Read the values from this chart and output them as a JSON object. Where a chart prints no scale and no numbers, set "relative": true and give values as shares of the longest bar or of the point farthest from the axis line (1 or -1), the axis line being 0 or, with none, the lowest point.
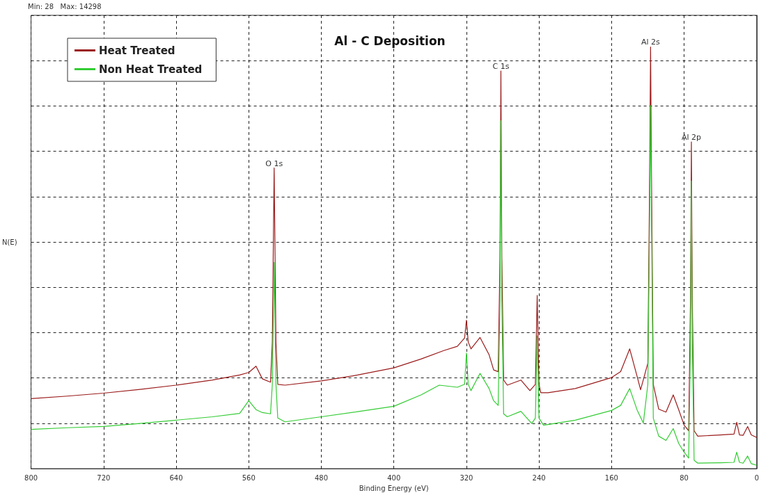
{
  "chart_data": {
    "type": "line",
    "title": "Al - C Deposition",
    "xlabel": "Binding Energy (eV)",
    "ylabel": "N(E)",
    "relative": true,
    "xlim": [
      800,
      0
    ],
    "xticks": [
      800,
      720,
      640,
      560,
      480,
      400,
      320,
      240,
      160,
      80,
      0
    ],
    "grid": true,
    "legend": "top left",
    "marker": "none",
    "line_style": "solid",
    "annotations": [
      "Min: 28   Max: 14298",
      {
        "text": "O 1s",
        "x": 532,
        "y": 0.713
      },
      {
        "text": "C 1s",
        "x": 282,
        "y": 0.943
      },
      {
        "text": "Al 2s",
        "x": 117,
        "y": 1.0
      },
      {
        "text": "Al 2p",
        "x": 72,
        "y": 0.775
      }
    ],
    "series": [
      {
        "name": "Heat Treated",
        "color": "#9b1b1b",
        "x": [
          800,
          760,
          720,
          680,
          640,
          600,
          570,
          560,
          552,
          545,
          536,
          534,
          532,
          530,
          528,
          520,
          480,
          440,
          400,
          370,
          345,
          330,
          322,
          320,
          318,
          315,
          305,
          295,
          290,
          285,
          283,
          282,
          281,
          279,
          275,
          260,
          250,
          244,
          242,
          240,
          238,
          230,
          200,
          160,
          150,
          140,
          132,
          128,
          120,
          118,
          117,
          116,
          114,
          108,
          100,
          92,
          86,
          80,
          75,
          73,
          72,
          71,
          69,
          65,
          40,
          25,
          22,
          19,
          15,
          10,
          6,
          0
        ],
        "values": [
          0.166,
          0.172,
          0.179,
          0.188,
          0.198,
          0.21,
          0.222,
          0.228,
          0.243,
          0.213,
          0.205,
          0.3,
          0.713,
          0.3,
          0.2,
          0.198,
          0.208,
          0.222,
          0.239,
          0.26,
          0.28,
          0.29,
          0.31,
          0.352,
          0.3,
          0.284,
          0.311,
          0.27,
          0.234,
          0.23,
          0.5,
          0.943,
          0.5,
          0.21,
          0.198,
          0.21,
          0.185,
          0.2,
          0.411,
          0.2,
          0.18,
          0.18,
          0.19,
          0.216,
          0.23,
          0.284,
          0.22,
          0.187,
          0.25,
          0.7,
          1.0,
          0.7,
          0.2,
          0.141,
          0.134,
          0.175,
          0.14,
          0.103,
          0.09,
          0.4,
          0.775,
          0.4,
          0.09,
          0.077,
          0.08,
          0.082,
          0.11,
          0.08,
          0.079,
          0.1,
          0.08,
          0.074
        ]
      },
      {
        "name": "Non Heat Treated",
        "color": "#33cc33",
        "x": [
          800,
          760,
          720,
          680,
          640,
          600,
          570,
          560,
          552,
          545,
          536,
          534,
          532,
          530,
          528,
          520,
          480,
          440,
          400,
          370,
          350,
          330,
          322,
          320,
          318,
          315,
          305,
          295,
          290,
          285,
          283,
          282,
          281,
          279,
          275,
          260,
          248,
          244,
          242,
          240,
          235,
          200,
          160,
          150,
          140,
          132,
          125,
          120,
          118,
          117,
          116,
          114,
          108,
          100,
          92,
          86,
          80,
          75,
          73,
          72,
          71,
          69,
          65,
          40,
          25,
          22,
          19,
          15,
          10,
          6,
          0
        ],
        "values": [
          0.093,
          0.097,
          0.1,
          0.107,
          0.115,
          0.123,
          0.131,
          0.161,
          0.14,
          0.133,
          0.13,
          0.2,
          0.489,
          0.2,
          0.12,
          0.111,
          0.123,
          0.135,
          0.148,
          0.175,
          0.198,
          0.193,
          0.2,
          0.274,
          0.2,
          0.185,
          0.226,
          0.19,
          0.161,
          0.15,
          0.4,
          0.825,
          0.4,
          0.13,
          0.123,
          0.136,
          0.107,
          0.12,
          0.315,
          0.12,
          0.103,
          0.115,
          0.138,
          0.15,
          0.19,
          0.14,
          0.108,
          0.2,
          0.6,
          0.861,
          0.6,
          0.12,
          0.077,
          0.067,
          0.095,
          0.06,
          0.039,
          0.025,
          0.3,
          0.682,
          0.3,
          0.02,
          0.013,
          0.014,
          0.015,
          0.039,
          0.015,
          0.013,
          0.03,
          0.012,
          0.008
        ]
      }
    ]
  }
}
